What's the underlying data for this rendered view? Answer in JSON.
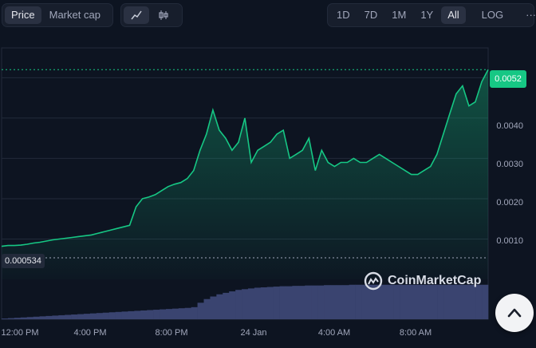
{
  "toolbar": {
    "metric": {
      "price_label": "Price",
      "market_cap_label": "Market cap",
      "active": "price"
    },
    "chart_type": {
      "line_icon": "line-chart-icon",
      "candle_icon": "candlestick-icon",
      "active": "line"
    },
    "ranges": [
      "1D",
      "7D",
      "1M",
      "1Y",
      "All"
    ],
    "active_range": "All",
    "log_label": "LOG",
    "more_label": "···"
  },
  "chart": {
    "current_price_label": "0.0052",
    "baseline_label": "0.000534",
    "y_ticks": [
      "0.0040",
      "0.0030",
      "0.0020",
      "0.0010"
    ],
    "x_ticks": [
      "12:00 PM",
      "4:00 PM",
      "8:00 PM",
      "24 Jan",
      "4:00 AM",
      "8:00 AM"
    ],
    "watermark": "CoinMarketCap",
    "colors": {
      "line": "#16c784",
      "volume": "#3a4470",
      "bg": "#0d1421",
      "grid": "#222a3a"
    }
  },
  "chart_data": {
    "type": "area",
    "ylim": [
      0,
      0.0057
    ],
    "y_ticks": [
      0.001,
      0.002,
      0.003,
      0.004
    ],
    "x_ticks": [
      "12:00 PM",
      "4:00 PM",
      "8:00 PM",
      "24 Jan",
      "4:00 AM",
      "8:00 AM"
    ],
    "baseline": 0.000534,
    "last_price": 0.0052,
    "price_series": [
      0.00082,
      0.00084,
      0.00084,
      0.00085,
      0.00087,
      0.0009,
      0.00092,
      0.00095,
      0.00098,
      0.001,
      0.00102,
      0.00104,
      0.00106,
      0.00108,
      0.0011,
      0.00114,
      0.00118,
      0.00122,
      0.00126,
      0.0013,
      0.00134,
      0.0018,
      0.002,
      0.00204,
      0.0021,
      0.0022,
      0.0023,
      0.00236,
      0.0024,
      0.0025,
      0.0027,
      0.0032,
      0.0036,
      0.0042,
      0.0037,
      0.0035,
      0.0032,
      0.0034,
      0.004,
      0.0029,
      0.0032,
      0.0033,
      0.0034,
      0.0036,
      0.0037,
      0.003,
      0.0031,
      0.0032,
      0.0035,
      0.0027,
      0.0032,
      0.0029,
      0.0028,
      0.0029,
      0.0029,
      0.003,
      0.0029,
      0.0029,
      0.003,
      0.0031,
      0.003,
      0.0029,
      0.0028,
      0.0027,
      0.0026,
      0.0026,
      0.0027,
      0.0028,
      0.0031,
      0.0036,
      0.0041,
      0.0046,
      0.0048,
      0.0043,
      0.0044,
      0.0049,
      0.0052
    ],
    "volume_series": [
      0.02,
      0.03,
      0.04,
      0.05,
      0.06,
      0.07,
      0.08,
      0.09,
      0.1,
      0.11,
      0.12,
      0.13,
      0.14,
      0.15,
      0.16,
      0.17,
      0.18,
      0.19,
      0.2,
      0.21,
      0.22,
      0.23,
      0.24,
      0.25,
      0.26,
      0.27,
      0.28,
      0.29,
      0.3,
      0.31,
      0.33,
      0.45,
      0.55,
      0.62,
      0.68,
      0.72,
      0.76,
      0.8,
      0.82,
      0.84,
      0.86,
      0.87,
      0.88,
      0.89,
      0.9,
      0.9,
      0.91,
      0.91,
      0.92,
      0.92,
      0.92,
      0.93,
      0.93,
      0.93,
      0.93,
      0.94,
      0.94,
      0.94,
      0.94,
      0.94,
      0.94,
      0.94,
      0.94,
      0.94,
      0.94,
      0.94,
      0.94,
      0.94,
      0.94,
      0.94,
      0.94,
      0.94,
      0.94,
      0.94,
      0.94,
      0.94,
      0.94
    ]
  }
}
